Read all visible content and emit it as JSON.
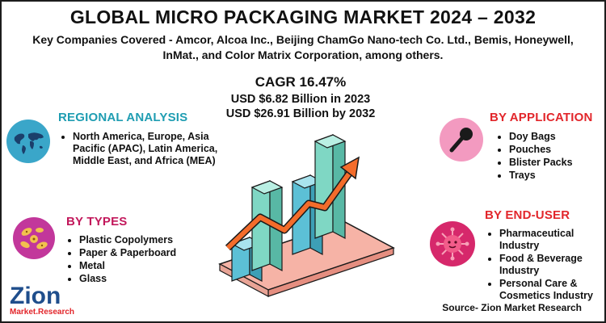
{
  "header": {
    "title": "GLOBAL MICRO PACKAGING MARKET 2024 – 2032",
    "companies": "Key Companies Covered - Amcor, Alcoa Inc., Beijing ChamGo Nano-tech Co. Ltd., Bemis, Honeywell, InMat., and Color Matrix Corporation, among others."
  },
  "stats": {
    "cagr": "CAGR 16.47%",
    "value_2023": "USD $6.82 Billion in 2023",
    "value_2032": "USD $26.91 Billion  by 2032"
  },
  "regional": {
    "title": "REGIONAL ANALYSIS",
    "items": [
      "North America, Europe, Asia Pacific (APAC), Latin America, Middle East, and Africa (MEA)"
    ],
    "icon": "world-map-icon"
  },
  "types": {
    "title": "BY TYPES",
    "items": [
      "Plastic Copolymers",
      "Paper & Paperboard",
      "Metal",
      "Glass"
    ],
    "icon": "particles-icon"
  },
  "application": {
    "title": "BY APPLICATION",
    "items": [
      "Doy Bags",
      "Pouches",
      "Blister Packs",
      "Trays"
    ],
    "icon": "microphone-icon"
  },
  "end_user": {
    "title": "BY END-USER",
    "items": [
      "Pharmaceutical Industry",
      "Food & Beverage Industry",
      "Personal Care & Cosmetics Industry"
    ],
    "icon": "virus-icon"
  },
  "footer": {
    "source": "Source- Zion Market Research",
    "logo_main": "Zion",
    "logo_sub": "Market.Research"
  },
  "colors": {
    "teal": "#1f9db2",
    "red": "#e2262b",
    "magenta": "#c2185b",
    "bar_teal": "#7fd7c4",
    "bar_blue": "#5cc0d6",
    "arrow": "#f36c2b",
    "base_pink": "#f6b3a6"
  }
}
